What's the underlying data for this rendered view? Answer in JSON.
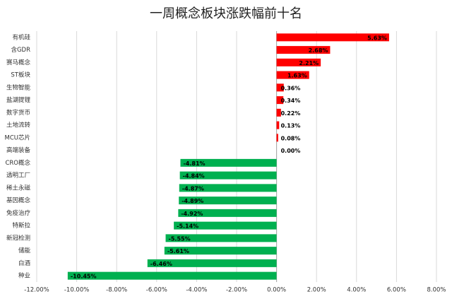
{
  "chart_data": {
    "type": "hbar",
    "title": "一周概念板块涨跌幅前十名",
    "categories": [
      "有机硅",
      "含GDR",
      "赛马概念",
      "ST板块",
      "生物智能",
      "盐湖提锂",
      "数字货币",
      "土地流转",
      "MCU芯片",
      "高端装备",
      "CRO概念",
      "透明工厂",
      "稀土永磁",
      "基因概念",
      "免疫治疗",
      "特斯拉",
      "新冠检测",
      "储能",
      "白酒",
      "种业"
    ],
    "values": [
      5.63,
      2.68,
      2.21,
      1.63,
      0.36,
      0.34,
      0.22,
      0.13,
      0.08,
      0.0,
      -4.81,
      -4.84,
      -4.87,
      -4.89,
      -4.92,
      -5.14,
      -5.55,
      -5.61,
      -6.46,
      -10.45
    ],
    "value_labels": [
      "5.63%",
      "2.68%",
      "2.21%",
      "1.63%",
      "0.36%",
      "0.34%",
      "0.22%",
      "0.13%",
      "0.08%",
      "0.00%",
      "-4.81%",
      "-4.84%",
      "-4.87%",
      "-4.89%",
      "-4.92%",
      "-5.14%",
      "-5.55%",
      "-5.61%",
      "-6.46%",
      "-10.45%"
    ],
    "positive_color": "#ff0000",
    "negative_color": "#00b050",
    "xlim": [
      -12,
      8
    ],
    "xticks": [
      {
        "value": -12,
        "label": "-12.00%"
      },
      {
        "value": -10,
        "label": "-10.00%"
      },
      {
        "value": -8,
        "label": "-8.00%"
      },
      {
        "value": -6,
        "label": "-6.00%"
      },
      {
        "value": -4,
        "label": "-4.00%"
      },
      {
        "value": -2,
        "label": "-2.00%"
      },
      {
        "value": 0,
        "label": "0.00%"
      },
      {
        "value": 2,
        "label": "2.00%"
      },
      {
        "value": 4,
        "label": "4.00%"
      },
      {
        "value": 6,
        "label": "6.00%"
      },
      {
        "value": 8,
        "label": "8.00%"
      }
    ],
    "grid": true
  }
}
